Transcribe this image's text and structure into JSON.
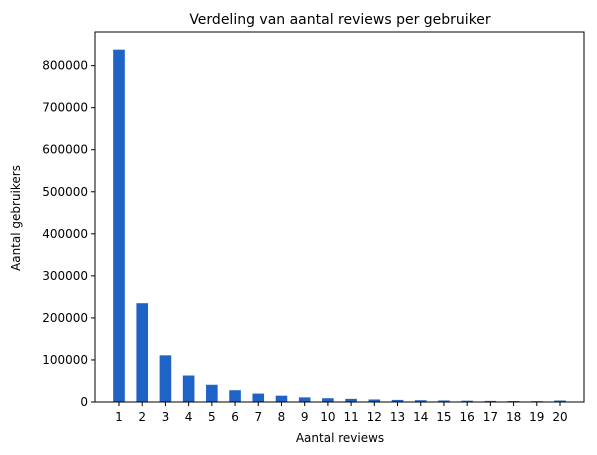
{
  "chart_data": {
    "type": "bar",
    "title": "Verdeling van aantal reviews per gebruiker",
    "xlabel": "Aantal reviews",
    "ylabel": "Aantal gebruikers",
    "categories": [
      "1",
      "2",
      "3",
      "4",
      "5",
      "6",
      "7",
      "8",
      "9",
      "10",
      "11",
      "12",
      "13",
      "14",
      "15",
      "16",
      "17",
      "18",
      "19",
      "20"
    ],
    "values": [
      838000,
      235000,
      111000,
      63000,
      41000,
      28000,
      20000,
      15000,
      11000,
      9000,
      7500,
      6000,
      5000,
      4200,
      3600,
      3100,
      2600,
      2300,
      2000,
      3500
    ],
    "yticks": [
      0,
      100000,
      200000,
      300000,
      400000,
      500000,
      600000,
      700000,
      800000
    ],
    "ylim": [
      0,
      880000
    ],
    "bar_color": "#1f63c6",
    "grid": false,
    "legend": "none"
  }
}
